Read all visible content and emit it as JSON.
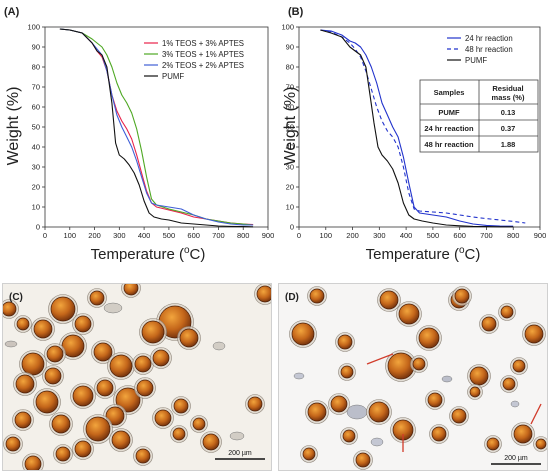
{
  "chart_data": [
    {
      "type": "line",
      "panel_label": "(A)",
      "xlabel": "Temperature (°C)",
      "xlabel_parts": [
        "Temperature (",
        "o",
        "C)"
      ],
      "ylabel": "Weight (%)",
      "xlim": [
        0,
        900
      ],
      "ylim": [
        0,
        100
      ],
      "xticks": [
        0,
        100,
        200,
        300,
        400,
        500,
        600,
        700,
        800,
        900
      ],
      "yticks": [
        0,
        10,
        20,
        30,
        40,
        50,
        60,
        70,
        80,
        90,
        100
      ],
      "legend_position": "top-right",
      "series": [
        {
          "name": "1% TEOS + 3% APTES",
          "color": "#e8224a",
          "dash": "",
          "x": [
            60,
            100,
            150,
            190,
            210,
            230,
            250,
            270,
            290,
            310,
            330,
            350,
            370,
            390,
            410,
            430,
            450,
            500,
            550,
            600,
            650,
            700,
            750,
            800,
            840
          ],
          "y": [
            99,
            98.5,
            97,
            92,
            88,
            85,
            78,
            66,
            58,
            53,
            49,
            44,
            36,
            27,
            18,
            12,
            10,
            8.5,
            7,
            5,
            4,
            3,
            2,
            1.5,
            1.2
          ]
        },
        {
          "name": "3% TEOS + 1% APTES",
          "color": "#4ea823",
          "dash": "",
          "x": [
            60,
            100,
            150,
            190,
            210,
            230,
            250,
            270,
            290,
            310,
            330,
            350,
            370,
            390,
            410,
            430,
            450,
            500,
            550,
            600,
            650,
            700,
            750,
            800,
            840
          ],
          "y": [
            99,
            98.5,
            97,
            94,
            92,
            90,
            86,
            80,
            72,
            66,
            62,
            57,
            49,
            38,
            25,
            14,
            11,
            9,
            7.5,
            6,
            4,
            3,
            2,
            1.5,
            1
          ]
        },
        {
          "name": "2% TEOS + 2% APTES",
          "color": "#3e5fd6",
          "dash": "",
          "x": [
            60,
            100,
            150,
            190,
            210,
            230,
            250,
            270,
            290,
            310,
            330,
            350,
            370,
            390,
            410,
            430,
            450,
            500,
            550,
            600,
            650,
            700,
            750,
            800,
            840
          ],
          "y": [
            99,
            98.5,
            97,
            92,
            89,
            86,
            78,
            66,
            56,
            50,
            45,
            40,
            33,
            25,
            17,
            12,
            11,
            10,
            9,
            6,
            4,
            2.5,
            1.5,
            1,
            1
          ]
        },
        {
          "name": "PUMF",
          "color": "#111111",
          "dash": "",
          "x": [
            60,
            100,
            150,
            190,
            210,
            230,
            250,
            270,
            285,
            300,
            320,
            340,
            360,
            380,
            400,
            420,
            440,
            470,
            500,
            550,
            600,
            650,
            700,
            750,
            800,
            840
          ],
          "y": [
            99,
            98.5,
            97,
            92,
            88,
            86,
            80,
            62,
            42,
            36,
            34,
            31,
            27,
            21,
            13,
            7,
            5,
            4,
            3.5,
            2,
            1.5,
            1,
            0.5,
            0.3,
            0.2,
            0.1
          ]
        }
      ]
    },
    {
      "type": "line",
      "panel_label": "(B)",
      "xlabel": "Temperature (°C)",
      "xlabel_parts": [
        "Temperature (",
        "o",
        "C)"
      ],
      "ylabel": "Weight (%)",
      "xlim": [
        0,
        900
      ],
      "ylim": [
        0,
        100
      ],
      "xticks": [
        0,
        100,
        200,
        300,
        400,
        500,
        600,
        700,
        800,
        900
      ],
      "yticks": [
        0,
        10,
        20,
        30,
        40,
        50,
        60,
        70,
        80,
        90,
        100
      ],
      "legend_position": "top-right",
      "series": [
        {
          "name": "24 hr reaction",
          "color": "#2233cc",
          "dash": "",
          "x": [
            80,
            120,
            160,
            190,
            210,
            230,
            250,
            270,
            290,
            310,
            330,
            350,
            370,
            390,
            410,
            430,
            450,
            500,
            550,
            600,
            650,
            700,
            750,
            800
          ],
          "y": [
            98.5,
            98,
            96,
            93,
            92,
            90,
            86,
            80,
            72,
            62,
            56,
            50,
            45,
            35,
            22,
            10,
            7,
            6,
            5,
            3,
            1.5,
            0.8,
            0.5,
            0.4
          ]
        },
        {
          "name": "48 hr reaction",
          "color": "#2233cc",
          "dash": "4 3",
          "x": [
            80,
            120,
            160,
            190,
            210,
            230,
            250,
            270,
            290,
            310,
            330,
            350,
            370,
            390,
            410,
            430,
            450,
            500,
            550,
            600,
            650,
            700,
            750,
            800,
            845
          ],
          "y": [
            98.5,
            97.5,
            95,
            92,
            89,
            85,
            78,
            69,
            60,
            53,
            48,
            45,
            40,
            30,
            17,
            9,
            8,
            7.5,
            7,
            6,
            5,
            4.2,
            3.5,
            2.8,
            2
          ]
        },
        {
          "name": "PUMF",
          "color": "#111111",
          "dash": "",
          "x": [
            80,
            120,
            160,
            190,
            210,
            230,
            250,
            265,
            280,
            295,
            310,
            330,
            350,
            370,
            390,
            410,
            430,
            460,
            500,
            550,
            600,
            650,
            700,
            750,
            800
          ],
          "y": [
            98.5,
            97,
            95,
            90,
            88,
            86,
            80,
            66,
            52,
            40,
            36,
            33,
            29,
            22,
            12,
            6,
            4,
            3,
            2,
            1,
            0.6,
            0.3,
            0.2,
            0.1,
            0.1
          ]
        }
      ],
      "table": {
        "headers": [
          "Samples",
          "Residual mass (%)"
        ],
        "header_lines": [
          [
            "Samples"
          ],
          [
            "Residual",
            "mass (%)"
          ]
        ],
        "rows": [
          [
            "PUMF",
            "0.13"
          ],
          [
            "24 hr reaction",
            "0.37"
          ],
          [
            "48 hr reaction",
            "1.88"
          ]
        ]
      }
    }
  ],
  "micrographs": [
    {
      "panel_label": "(C)",
      "scale_bar": "200 µm"
    },
    {
      "panel_label": "(D)",
      "scale_bar": "200 µm"
    }
  ]
}
